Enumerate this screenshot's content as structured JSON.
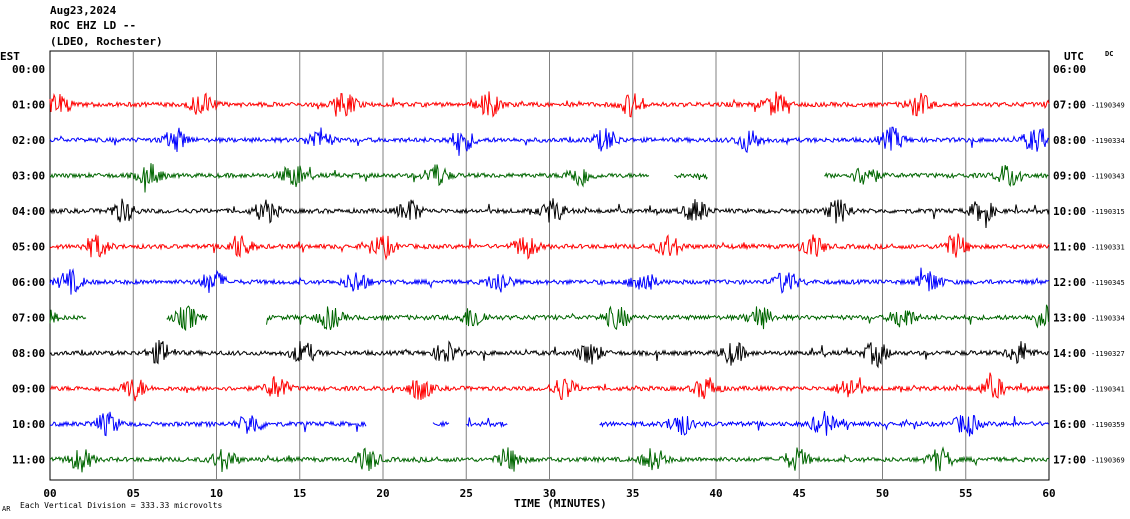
{
  "header": {
    "date": "Aug23,2024",
    "station": "ROC EHZ LD --",
    "network": "(LDEO, Rochester)"
  },
  "left_axis_title": "EST",
  "right_axis_title": "UTC",
  "dc_label": "DC",
  "footer": {
    "scale_text": "Each Vertical Division = 333.33 microvolts",
    "logo_text": "AR"
  },
  "colors": {
    "red": "#ff0000",
    "blue": "#0000ff",
    "green": "#006600",
    "black": "#000000",
    "grid": "#808080"
  },
  "chart_data": {
    "type": "line",
    "title": "",
    "xlabel": "TIME (MINUTES)",
    "ylabel": "",
    "xlim": [
      0,
      60
    ],
    "x_ticks": [
      "00",
      "05",
      "10",
      "15",
      "20",
      "25",
      "30",
      "35",
      "40",
      "45",
      "50",
      "55",
      "60"
    ],
    "grid": true,
    "rows": [
      {
        "est": "00:00",
        "utc": "06:00",
        "dc": "",
        "color": "",
        "segments": []
      },
      {
        "est": "01:00",
        "utc": "07:00",
        "dc": "-1190349",
        "color": "#ff0000",
        "segments": [
          [
            0,
            60
          ]
        ]
      },
      {
        "est": "02:00",
        "utc": "08:00",
        "dc": "-1190334",
        "color": "#0000ff",
        "segments": [
          [
            0,
            60
          ]
        ]
      },
      {
        "est": "03:00",
        "utc": "09:00",
        "dc": "-1190343",
        "color": "#006600",
        "segments": [
          [
            0,
            36
          ],
          [
            37.5,
            39.5
          ],
          [
            46.5,
            60
          ]
        ]
      },
      {
        "est": "04:00",
        "utc": "10:00",
        "dc": "-1190315",
        "color": "#000000",
        "segments": [
          [
            0,
            60
          ]
        ]
      },
      {
        "est": "05:00",
        "utc": "11:00",
        "dc": "-1190331",
        "color": "#ff0000",
        "segments": [
          [
            0,
            60
          ]
        ]
      },
      {
        "est": "06:00",
        "utc": "12:00",
        "dc": "-1190345",
        "color": "#0000ff",
        "segments": [
          [
            0,
            60
          ]
        ]
      },
      {
        "est": "07:00",
        "utc": "13:00",
        "dc": "-1190334",
        "color": "#006600",
        "segments": [
          [
            0,
            2.2
          ],
          [
            7,
            9.5
          ],
          [
            13,
            60
          ]
        ]
      },
      {
        "est": "08:00",
        "utc": "14:00",
        "dc": "-1190327",
        "color": "#000000",
        "segments": [
          [
            0,
            60
          ]
        ]
      },
      {
        "est": "09:00",
        "utc": "15:00",
        "dc": "-1190341",
        "color": "#ff0000",
        "segments": [
          [
            0,
            60
          ]
        ]
      },
      {
        "est": "10:00",
        "utc": "16:00",
        "dc": "-1190359",
        "color": "#0000ff",
        "segments": [
          [
            0,
            19
          ],
          [
            23,
            24
          ],
          [
            25,
            27.5
          ],
          [
            33,
            60
          ]
        ]
      },
      {
        "est": "11:00",
        "utc": "17:00",
        "dc": "-1190369",
        "color": "#006600",
        "segments": [
          [
            0,
            60
          ]
        ]
      }
    ]
  }
}
